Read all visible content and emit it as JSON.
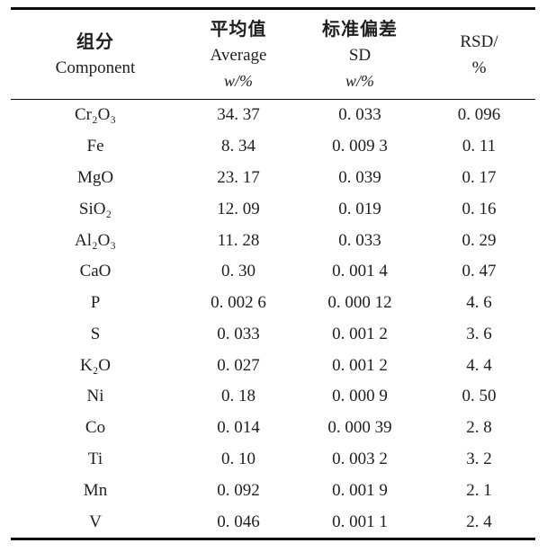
{
  "table": {
    "header": [
      {
        "line1": "组分",
        "line2": "Component",
        "line3": ""
      },
      {
        "line1": "平均值",
        "line2": "Average",
        "line3": "w/%"
      },
      {
        "line1": "标准偏差",
        "line2": "SD",
        "line3": "w/%"
      },
      {
        "line1": "RSD/",
        "line2": "%",
        "line3": ""
      }
    ],
    "rows": [
      {
        "component": "Cr₂O₃",
        "average": "34. 37",
        "sd": "0. 033",
        "rsd": "0. 096"
      },
      {
        "component": "Fe",
        "average": "8. 34",
        "sd": "0. 009 3",
        "rsd": "0. 11"
      },
      {
        "component": "MgO",
        "average": "23. 17",
        "sd": "0. 039",
        "rsd": "0. 17"
      },
      {
        "component": "SiO₂",
        "average": "12. 09",
        "sd": "0. 019",
        "rsd": "0. 16"
      },
      {
        "component": "Al₂O₃",
        "average": "11. 28",
        "sd": "0. 033",
        "rsd": "0. 29"
      },
      {
        "component": "CaO",
        "average": "0. 30",
        "sd": "0. 001 4",
        "rsd": "0. 47"
      },
      {
        "component": "P",
        "average": "0. 002 6",
        "sd": "0. 000 12",
        "rsd": "4. 6"
      },
      {
        "component": "S",
        "average": "0. 033",
        "sd": "0. 001 2",
        "rsd": "3. 6"
      },
      {
        "component": "K₂O",
        "average": "0. 027",
        "sd": "0. 001 2",
        "rsd": "4. 4"
      },
      {
        "component": "Ni",
        "average": "0. 18",
        "sd": "0. 000 9",
        "rsd": "0. 50"
      },
      {
        "component": "Co",
        "average": "0. 014",
        "sd": "0. 000 39",
        "rsd": "2. 8"
      },
      {
        "component": "Ti",
        "average": "0. 10",
        "sd": "0. 003 2",
        "rsd": "3. 2"
      },
      {
        "component": "Mn",
        "average": "0. 092",
        "sd": "0. 001 9",
        "rsd": "2. 1"
      },
      {
        "component": "V",
        "average": "0. 046",
        "sd": "0. 001 1",
        "rsd": "2. 4"
      }
    ]
  },
  "colors": {
    "text": "#1f1f1f",
    "rule": "#0a0a0a",
    "background": "#ffffff"
  }
}
